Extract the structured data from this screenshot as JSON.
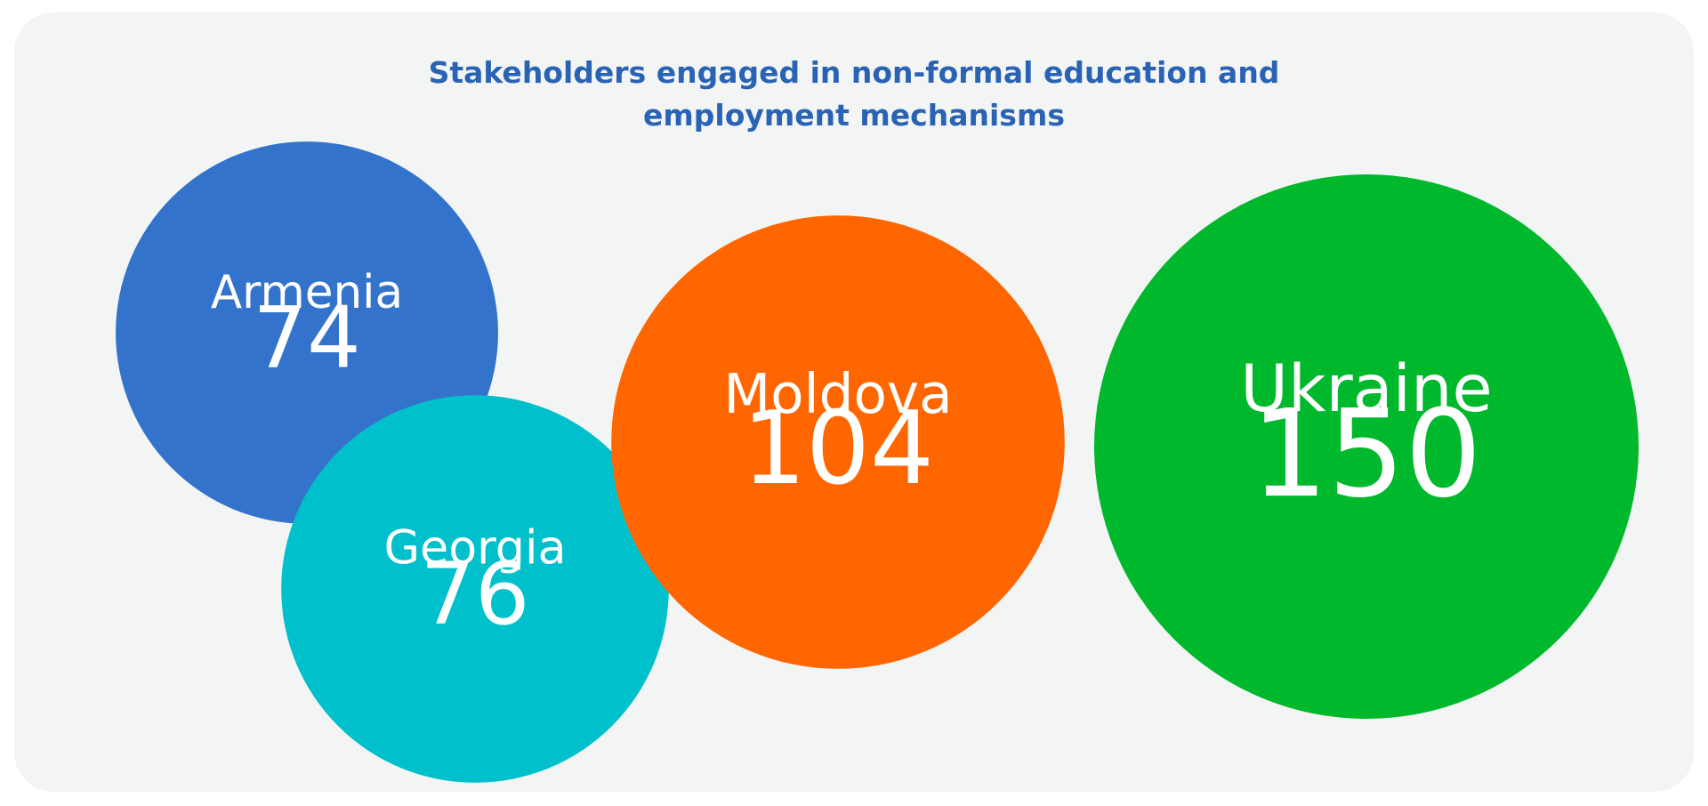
{
  "chart_data": {
    "type": "bubble",
    "title_lines": [
      "Stakeholders engaged in non-formal education and",
      "employment mechanisms"
    ],
    "categories": [
      "Armenia",
      "Georgia",
      "Moldova",
      "Ukraine"
    ],
    "values": [
      74,
      76,
      104,
      150
    ],
    "value_labels": [
      "74",
      "76",
      "104",
      "150"
    ],
    "colors": [
      "#3373cb",
      "#00c0cb",
      "#ff6600",
      "#00b82c"
    ]
  }
}
